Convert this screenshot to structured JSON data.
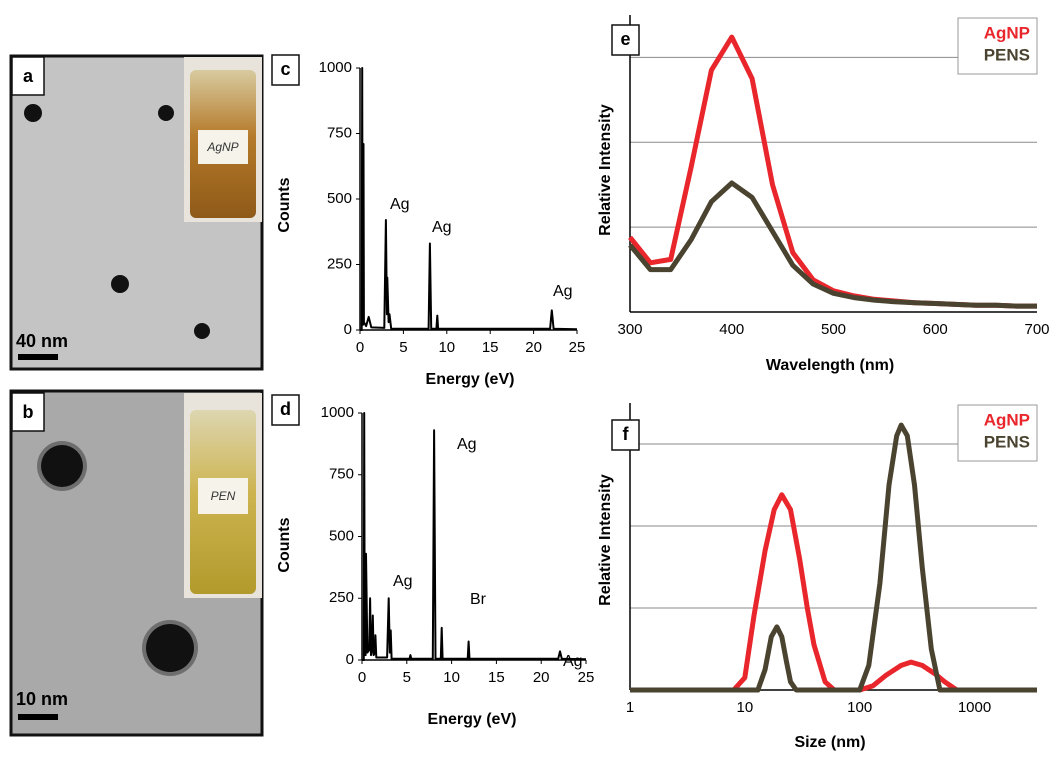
{
  "images": [
    {
      "label": "a",
      "scale_bar": "40 nm",
      "vial_label": "AgNP"
    },
    {
      "label": "b",
      "scale_bar": "10 nm",
      "vial_label": "PEN"
    }
  ],
  "chart_data": [
    {
      "type": "line",
      "panel": "c",
      "xlabel": "Energy (eV)",
      "ylabel": "Counts",
      "xlim": [
        0,
        25
      ],
      "ylim": [
        0,
        1000
      ],
      "xticks": [
        0,
        5,
        10,
        15,
        20,
        25
      ],
      "yticks": [
        0,
        250,
        500,
        750,
        1000
      ],
      "series": [
        {
          "color": "#000000",
          "x": [
            0,
            0.2,
            0.25,
            0.3,
            0.35,
            0.4,
            0.45,
            0.7,
            1.0,
            1.3,
            2.8,
            2.98,
            3.1,
            3.15,
            3.3,
            3.4,
            3.6,
            7.9,
            8.05,
            8.2,
            8.8,
            8.9,
            9.0,
            21.9,
            22.1,
            22.3,
            25
          ],
          "values": [
            0,
            0,
            1000,
            40,
            20,
            710,
            30,
            15,
            50,
            10,
            8,
            420,
            60,
            200,
            30,
            60,
            5,
            5,
            330,
            5,
            5,
            55,
            5,
            5,
            75,
            5,
            3
          ]
        }
      ],
      "annotations": [
        "Ag",
        "Ag",
        "Ag"
      ]
    },
    {
      "type": "line",
      "panel": "d",
      "xlabel": "Energy (eV)",
      "ylabel": "Counts",
      "xlim": [
        0,
        25
      ],
      "ylim": [
        0,
        1000
      ],
      "xticks": [
        0,
        5,
        10,
        15,
        20,
        25
      ],
      "yticks": [
        0,
        250,
        500,
        750,
        1000
      ],
      "series": [
        {
          "color": "#000000",
          "x": [
            0,
            0.2,
            0.25,
            0.3,
            0.4,
            0.45,
            0.6,
            0.8,
            0.9,
            1.0,
            1.1,
            1.2,
            1.3,
            1.45,
            1.5,
            1.6,
            2.8,
            2.98,
            3.1,
            3.2,
            3.3,
            5.3,
            5.4,
            5.5,
            7.9,
            8.05,
            8.2,
            8.8,
            8.9,
            9.0,
            11.8,
            11.9,
            12.0,
            21.9,
            22.1,
            22.3,
            25
          ],
          "values": [
            0,
            0,
            1000,
            80,
            20,
            430,
            30,
            40,
            250,
            20,
            40,
            180,
            20,
            30,
            100,
            10,
            10,
            250,
            30,
            120,
            5,
            5,
            20,
            5,
            5,
            930,
            5,
            5,
            130,
            5,
            5,
            75,
            5,
            5,
            35,
            5,
            3
          ]
        }
      ],
      "annotations": [
        "Ag",
        "Ag",
        "Br",
        "Ag"
      ]
    },
    {
      "type": "line",
      "panel": "e",
      "xlabel": "Wavelength (nm)",
      "ylabel": "Relative Intensity",
      "xlim": [
        300,
        700
      ],
      "ylim": [
        0,
        3.5
      ],
      "xticks": [
        300,
        400,
        500,
        600,
        700
      ],
      "yticks": [
        1,
        2,
        3
      ],
      "ytick_labels": false,
      "grid": true,
      "legend": "upper right",
      "x": [
        300,
        320,
        340,
        360,
        380,
        400,
        420,
        440,
        460,
        480,
        500,
        520,
        540,
        560,
        580,
        600,
        620,
        640,
        660,
        680,
        700
      ],
      "series": [
        {
          "name": "AgNP",
          "color": "#e8262c",
          "values": [
            0.88,
            0.58,
            0.62,
            1.7,
            2.85,
            3.24,
            2.75,
            1.5,
            0.7,
            0.38,
            0.25,
            0.19,
            0.15,
            0.13,
            0.11,
            0.1,
            0.09,
            0.08,
            0.08,
            0.07,
            0.07
          ]
        },
        {
          "name": "PENS",
          "color": "#4a4330",
          "values": [
            0.79,
            0.5,
            0.5,
            0.85,
            1.3,
            1.52,
            1.35,
            0.95,
            0.55,
            0.33,
            0.22,
            0.17,
            0.14,
            0.12,
            0.11,
            0.1,
            0.09,
            0.08,
            0.08,
            0.07,
            0.07
          ]
        }
      ]
    },
    {
      "type": "line",
      "panel": "f",
      "xlabel": "Size (nm)",
      "ylabel": "Relative Intensity",
      "xscale": "log",
      "xlim": [
        1,
        3500
      ],
      "ylim": [
        0,
        3.5
      ],
      "xticks": [
        1,
        10,
        100,
        1000
      ],
      "yticks": [
        1,
        2,
        3
      ],
      "ytick_labels": false,
      "grid": true,
      "legend": "upper right",
      "series": [
        {
          "name": "AgNP",
          "color": "#e8262c",
          "x": [
            1,
            8,
            10,
            12,
            15,
            18,
            21,
            25,
            30,
            35,
            40,
            50,
            60,
            100,
            130,
            170,
            230,
            280,
            350,
            450,
            550,
            700,
            1000,
            3500
          ],
          "values": [
            0,
            0,
            0.15,
            0.9,
            1.7,
            2.2,
            2.38,
            2.2,
            1.6,
            1.0,
            0.55,
            0.1,
            0,
            0,
            0.05,
            0.18,
            0.3,
            0.34,
            0.3,
            0.2,
            0.1,
            0,
            0,
            0
          ]
        },
        {
          "name": "PENS",
          "color": "#4a4330",
          "x": [
            1,
            13,
            15,
            17,
            19,
            21,
            23,
            25,
            28,
            100,
            120,
            150,
            180,
            210,
            230,
            260,
            300,
            350,
            420,
            500,
            3500
          ],
          "values": [
            0,
            0,
            0.25,
            0.65,
            0.77,
            0.65,
            0.35,
            0.1,
            0,
            0,
            0.3,
            1.3,
            2.5,
            3.1,
            3.23,
            3.1,
            2.5,
            1.5,
            0.5,
            0,
            0
          ]
        }
      ]
    }
  ]
}
